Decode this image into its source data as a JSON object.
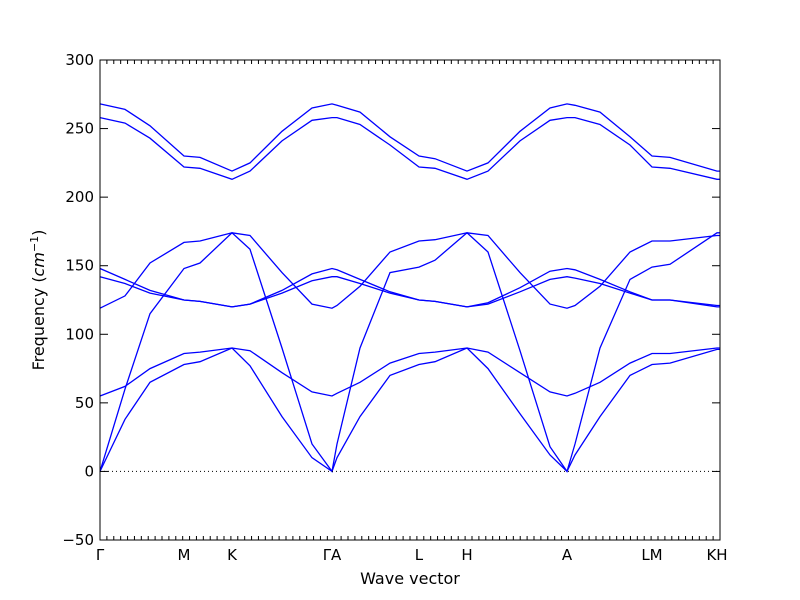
{
  "chart_data": {
    "type": "line",
    "xlabel": "Wave vector",
    "ylabel": "Frequency ($cm^{-1}$)",
    "ylabel_parts": {
      "main": "Frequency (",
      "unit_base": "cm",
      "unit_exp": "−1",
      "close": ")"
    },
    "ylim": [
      -50,
      300
    ],
    "yticks": [
      -50,
      0,
      50,
      100,
      150,
      200,
      250,
      300
    ],
    "xlim": [
      0,
      1
    ],
    "xticks": [
      {
        "label": "Γ",
        "x": 0.0
      },
      {
        "label": "M",
        "x": 0.1355
      },
      {
        "label": "K",
        "x": 0.2129
      },
      {
        "label": "ΓA",
        "x": 0.3742
      },
      {
        "label": "L",
        "x": 0.5145
      },
      {
        "label": "H",
        "x": 0.5919
      },
      {
        "label": "A",
        "x": 0.7532
      },
      {
        "label": "LM",
        "x": 0.8903
      },
      {
        "label": "KH",
        "x": 0.9952
      }
    ],
    "zero_line": {
      "y": 0,
      "style": "dotted"
    },
    "grid": false,
    "series": [
      {
        "x": [
          0,
          0.0403,
          0.0806,
          0.1355,
          0.1613,
          0.2129,
          0.2419,
          0.2935,
          0.3419,
          0.3742,
          0.3823,
          0.4194,
          0.4677,
          0.5145,
          0.5403,
          0.5919,
          0.6258,
          0.6774,
          0.7258,
          0.7532,
          0.7661,
          0.8065,
          0.8548,
          0.8903,
          0.9194,
          0.9952,
          1.0
        ],
        "y": [
          0,
          38,
          65,
          78,
          80,
          90,
          77,
          40,
          10,
          0,
          10,
          40,
          70,
          78,
          80,
          90,
          75,
          42,
          12,
          0,
          12,
          40,
          70,
          78,
          79,
          89,
          89
        ]
      },
      {
        "x": [
          0,
          0.0403,
          0.0806,
          0.1355,
          0.1613,
          0.2129,
          0.2419,
          0.2935,
          0.3419,
          0.3742,
          0.3823,
          0.4194,
          0.4677,
          0.5145,
          0.5403,
          0.5919,
          0.6258,
          0.6774,
          0.7258,
          0.7532,
          0.7661,
          0.8065,
          0.8548,
          0.8903,
          0.9194,
          0.9952,
          1.0
        ],
        "y": [
          55,
          62,
          75,
          86,
          87,
          90,
          88,
          72,
          58,
          55,
          57,
          65,
          79,
          86,
          87,
          90,
          87,
          72,
          58,
          55,
          57,
          65,
          79,
          86,
          86,
          90,
          90
        ]
      },
      {
        "x": [
          0,
          0.0403,
          0.0806,
          0.1355,
          0.1613,
          0.2129,
          0.2419,
          0.2935,
          0.3419,
          0.3742,
          0.3823,
          0.4194,
          0.4677,
          0.5145,
          0.5403,
          0.5919,
          0.6258,
          0.6774,
          0.7258,
          0.7532,
          0.7661,
          0.8065,
          0.8548,
          0.8903,
          0.9194,
          0.9952,
          1.0
        ],
        "y": [
          119,
          128,
          152,
          167,
          168,
          174,
          172,
          145,
          122,
          119,
          121,
          135,
          160,
          168,
          169,
          174,
          172,
          145,
          122,
          119,
          121,
          135,
          160,
          168,
          168,
          172,
          172
        ]
      },
      {
        "x": [
          0,
          0.0403,
          0.0806,
          0.1355,
          0.1613,
          0.2129,
          0.2419,
          0.2935,
          0.3419,
          0.3742,
          0.3823,
          0.4194,
          0.4677,
          0.5145,
          0.5403,
          0.5919,
          0.6258,
          0.6774,
          0.7258,
          0.7532,
          0.7661,
          0.8065,
          0.8548,
          0.8903,
          0.9194,
          0.9952,
          1.0
        ],
        "y": [
          148,
          140,
          132,
          125,
          124,
          120,
          122,
          132,
          144,
          148,
          147,
          140,
          131,
          125,
          124,
          120,
          123,
          134,
          146,
          148,
          147,
          140,
          131,
          125,
          125,
          121,
          121
        ]
      },
      {
        "x": [
          0,
          0.0403,
          0.0806,
          0.1355,
          0.1613,
          0.2129,
          0.2419,
          0.2935,
          0.3419,
          0.3742,
          0.3823,
          0.4194,
          0.4677,
          0.5145,
          0.5403,
          0.5919,
          0.6258,
          0.6774,
          0.7258,
          0.7532,
          0.7661,
          0.8065,
          0.8548,
          0.8903,
          0.9194,
          0.9952,
          1.0
        ],
        "y": [
          142,
          137,
          130,
          125,
          124,
          120,
          122,
          130,
          139,
          142,
          142,
          137,
          130,
          125,
          124,
          120,
          122,
          131,
          140,
          142,
          141,
          137,
          130,
          125,
          125,
          120,
          120
        ]
      },
      {
        "x": [
          0,
          0.0403,
          0.0806,
          0.1355,
          0.1613,
          0.2129,
          0.2419,
          0.2935,
          0.3419,
          0.3742,
          0.3823,
          0.4194,
          0.4677,
          0.5145,
          0.5403,
          0.5919,
          0.6258,
          0.6774,
          0.7258,
          0.7532,
          0.7661,
          0.8065,
          0.8548,
          0.8903,
          0.9194,
          0.9952,
          1.0
        ],
        "y": [
          0,
          60,
          115,
          148,
          152,
          174,
          162,
          90,
          20,
          0,
          20,
          90,
          145,
          149,
          154,
          174,
          160,
          88,
          18,
          0,
          20,
          90,
          140,
          149,
          151,
          174,
          174
        ]
      },
      {
        "x": [
          0,
          0.0403,
          0.0806,
          0.1355,
          0.1613,
          0.2129,
          0.2419,
          0.2935,
          0.3419,
          0.3742,
          0.3823,
          0.4194,
          0.4677,
          0.5145,
          0.5403,
          0.5919,
          0.6258,
          0.6774,
          0.7258,
          0.7532,
          0.7661,
          0.8065,
          0.8548,
          0.8903,
          0.9194,
          0.9952,
          1.0
        ],
        "y": [
          268,
          264,
          252,
          230,
          229,
          219,
          225,
          248,
          265,
          268,
          267,
          262,
          244,
          230,
          228,
          219,
          225,
          248,
          265,
          268,
          267,
          262,
          244,
          230,
          229,
          219,
          219
        ]
      },
      {
        "x": [
          0,
          0.0403,
          0.0806,
          0.1355,
          0.1613,
          0.2129,
          0.2419,
          0.2935,
          0.3419,
          0.3742,
          0.3823,
          0.4194,
          0.4677,
          0.5145,
          0.5403,
          0.5919,
          0.6258,
          0.6774,
          0.7258,
          0.7532,
          0.7661,
          0.8065,
          0.8548,
          0.8903,
          0.9194,
          0.9952,
          1.0
        ],
        "y": [
          258,
          254,
          243,
          222,
          221,
          213,
          219,
          241,
          256,
          258,
          258,
          253,
          238,
          222,
          221,
          213,
          219,
          241,
          256,
          258,
          258,
          253,
          238,
          222,
          221,
          213,
          213
        ]
      }
    ]
  }
}
